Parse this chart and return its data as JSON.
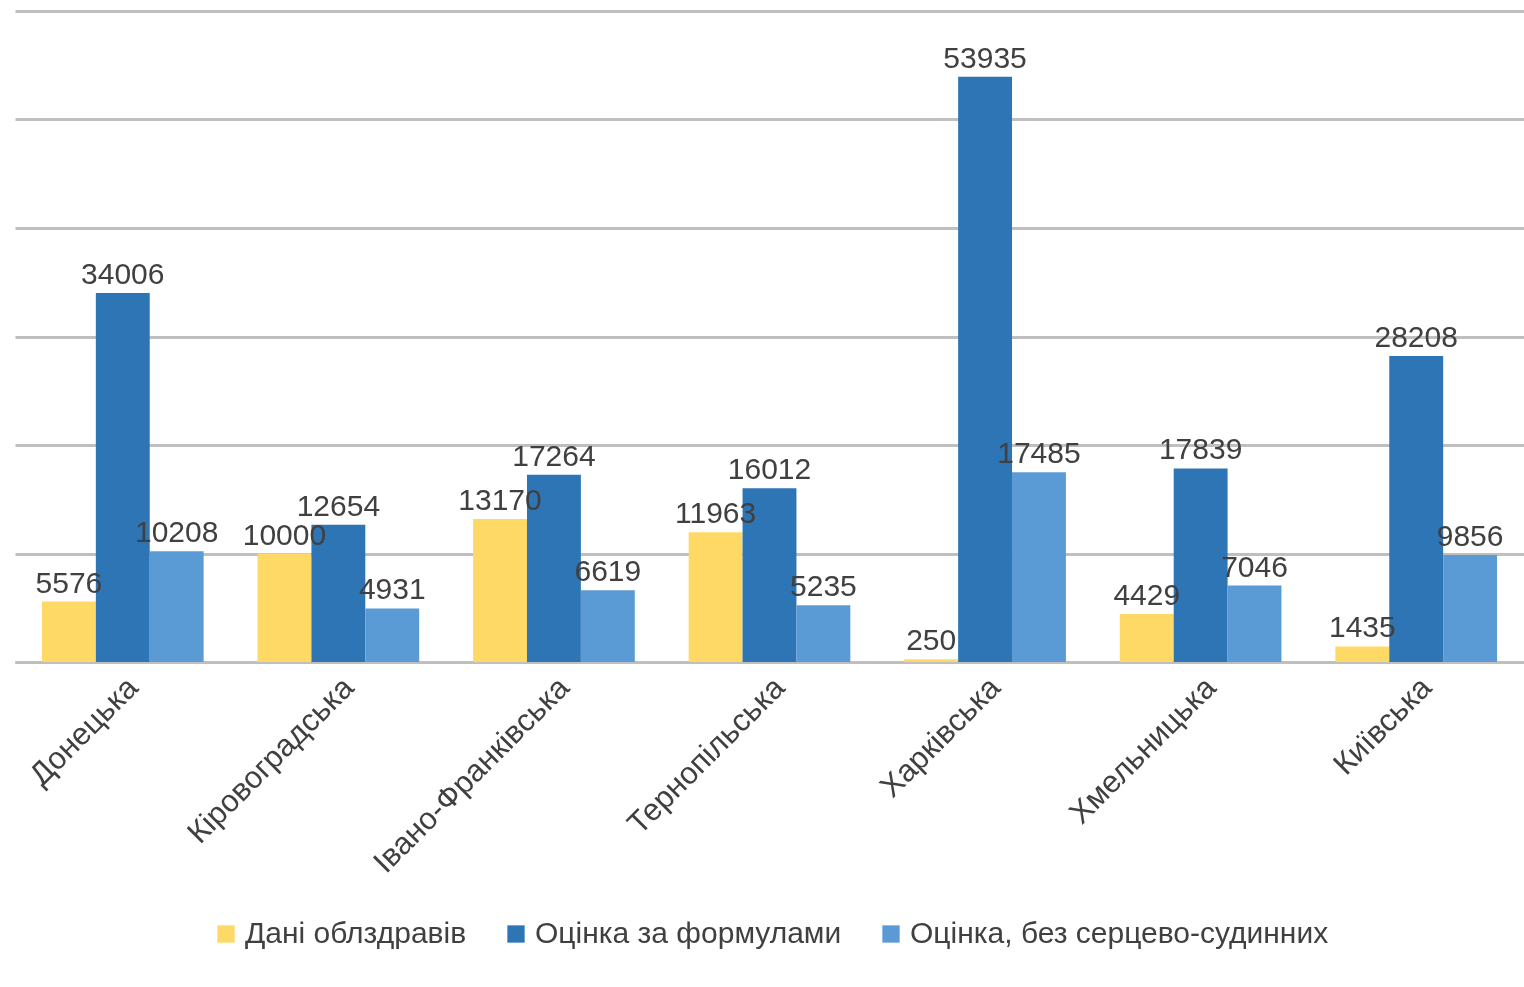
{
  "chart_data": {
    "type": "bar",
    "categories": [
      "Донецька",
      "Кіровоградська",
      "Івано-Франківська",
      "Тернопільська",
      "Харківська",
      "Хмельницька",
      "Київська"
    ],
    "series": [
      {
        "name": "Дані облздравів",
        "color": "#ffd966",
        "values": [
          5576,
          10000,
          13170,
          11963,
          250,
          4429,
          1435
        ]
      },
      {
        "name": "Оцінка за формулами",
        "color": "#2e75b6",
        "values": [
          34006,
          12654,
          17264,
          16012,
          53935,
          17839,
          28208
        ]
      },
      {
        "name": "Оцінка, без серцево-судинних",
        "color": "#5b9bd5",
        "values": [
          10208,
          4931,
          6619,
          5235,
          17485,
          7046,
          9856
        ]
      }
    ],
    "ylim": [
      0,
      60000
    ],
    "yticks": [
      {
        "value": 0,
        "label": null
      },
      {
        "value": 10000,
        "label": null
      },
      {
        "value": 20000,
        "label": null
      },
      {
        "value": 30000,
        "label": null
      },
      {
        "value": 40000,
        "label": null
      },
      {
        "value": 50000,
        "label": null
      },
      {
        "value": 60000,
        "label": null
      }
    ],
    "tick_labels": "x",
    "grid": "y",
    "legend": "bottom",
    "data_labels": true
  }
}
